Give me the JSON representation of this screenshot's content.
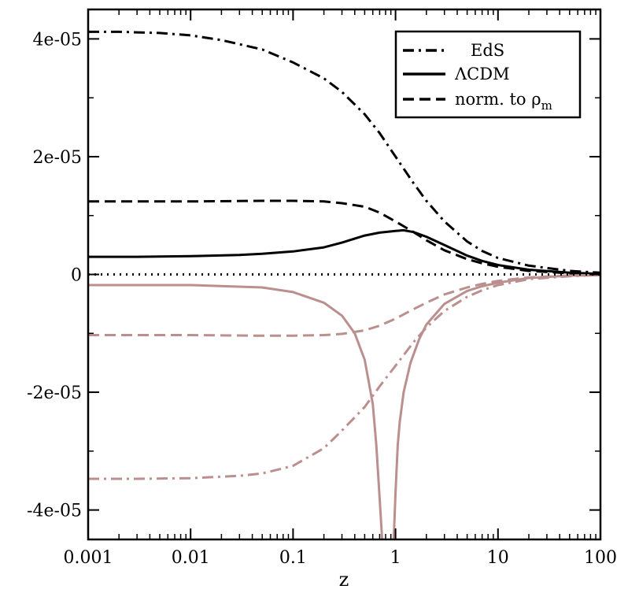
{
  "chart_data": {
    "type": "line",
    "xlabel": "z",
    "ylabel": "",
    "xscale": "log",
    "xlim": [
      0.001,
      100
    ],
    "ylim": [
      -4.5e-05,
      4.5e-05
    ],
    "grid": false,
    "legend_position": "top-right",
    "xticks": [
      {
        "value": 0.001,
        "label": "0.001"
      },
      {
        "value": 0.01,
        "label": "0.01"
      },
      {
        "value": 0.1,
        "label": "0.1"
      },
      {
        "value": 1,
        "label": "1"
      },
      {
        "value": 10,
        "label": "10"
      },
      {
        "value": 100,
        "label": "100"
      }
    ],
    "yticks": [
      {
        "value": 4e-05,
        "label": "4e-05"
      },
      {
        "value": 2e-05,
        "label": "2e-05"
      },
      {
        "value": 0,
        "label": "0"
      },
      {
        "value": -2e-05,
        "label": "-2e-05"
      },
      {
        "value": -4e-05,
        "label": "-4e-05"
      }
    ],
    "legend": [
      {
        "label": "EdS",
        "style": "dashdot"
      },
      {
        "label": "ΛCDM",
        "style": "solid"
      },
      {
        "label_main": "norm. to ρ",
        "label_sub": "m",
        "style": "dashed"
      }
    ],
    "series": [
      {
        "style": "dashdot",
        "color": "#000000",
        "x": [
          0.001,
          0.002,
          0.005,
          0.01,
          0.02,
          0.05,
          0.1,
          0.2,
          0.3,
          0.5,
          0.7,
          1,
          1.5,
          2,
          3,
          5,
          7,
          10,
          20,
          50,
          100
        ],
        "y": [
          4.12e-05,
          4.12e-05,
          4.1e-05,
          4.06e-05,
          3.98e-05,
          3.82e-05,
          3.6e-05,
          3.33e-05,
          3.1e-05,
          2.72e-05,
          2.4e-05,
          2e-05,
          1.55e-05,
          1.25e-05,
          9e-06,
          5.6e-06,
          4e-06,
          2.8e-06,
          1.5e-06,
          6e-07,
          3e-07
        ]
      },
      {
        "style": "solid",
        "color": "#000000",
        "x": [
          0.001,
          0.003,
          0.01,
          0.03,
          0.05,
          0.1,
          0.2,
          0.3,
          0.5,
          0.7,
          1,
          1.2,
          1.5,
          2,
          3,
          5,
          7,
          10,
          20,
          50,
          100
        ],
        "y": [
          3e-06,
          3e-06,
          3.1e-06,
          3.3e-06,
          3.5e-06,
          3.9e-06,
          4.6e-06,
          5.4e-06,
          6.6e-06,
          7.1e-06,
          7.4e-06,
          7.5e-06,
          7.2e-06,
          6.4e-06,
          5e-06,
          3.2e-06,
          2.3e-06,
          1.6e-06,
          8e-07,
          3e-07,
          1e-07
        ]
      },
      {
        "style": "dashed",
        "color": "#000000",
        "x": [
          0.001,
          0.01,
          0.05,
          0.1,
          0.2,
          0.3,
          0.5,
          0.7,
          1,
          1.5,
          2,
          3,
          5,
          7,
          10,
          20,
          50,
          100
        ],
        "y": [
          1.24e-05,
          1.24e-05,
          1.25e-05,
          1.25e-05,
          1.24e-05,
          1.21e-05,
          1.15e-05,
          1.05e-05,
          9e-06,
          7.2e-06,
          5.8e-06,
          4.1e-06,
          2.6e-06,
          1.9e-06,
          1.3e-06,
          6e-07,
          2e-07,
          1e-07
        ]
      },
      {
        "style": "dashdot",
        "color": "#bc8f8f",
        "x": [
          0.001,
          0.003,
          0.01,
          0.03,
          0.05,
          0.1,
          0.2,
          0.3,
          0.5,
          0.7,
          1,
          1.5,
          2,
          3,
          5,
          7,
          10,
          20,
          50,
          100
        ],
        "y": [
          -3.47e-05,
          -3.47e-05,
          -3.46e-05,
          -3.42e-05,
          -3.38e-05,
          -3.25e-05,
          -2.95e-05,
          -2.65e-05,
          -2.25e-05,
          -1.9e-05,
          -1.55e-05,
          -1.15e-05,
          -9e-06,
          -6.2e-06,
          -3.8e-06,
          -2.7e-06,
          -1.8e-06,
          -8e-07,
          -3e-07,
          -1e-07
        ]
      },
      {
        "style": "solid",
        "color": "#bc8f8f",
        "x": [
          0.001,
          0.01,
          0.05,
          0.1,
          0.2,
          0.3,
          0.4,
          0.5,
          0.6,
          0.65,
          0.7,
          0.74
        ],
        "y": [
          -1.8e-06,
          -1.8e-06,
          -2.2e-06,
          -3e-06,
          -4.8e-06,
          -7e-06,
          -1e-05,
          -1.45e-05,
          -2.2e-05,
          -2.9e-05,
          -3.8e-05,
          -4.5e-05
        ]
      },
      {
        "style": "solid",
        "color": "#bc8f8f",
        "x": [
          0.96,
          1,
          1.05,
          1.1,
          1.2,
          1.4,
          1.7,
          2,
          3,
          5,
          7,
          10,
          20,
          50,
          100
        ],
        "y": [
          -4.5e-05,
          -3.7e-05,
          -2.9e-05,
          -2.5e-05,
          -2e-05,
          -1.5e-05,
          -1.1e-05,
          -8.5e-06,
          -5e-06,
          -2.8e-06,
          -2e-06,
          -1.4e-06,
          -6e-07,
          -2e-07,
          -1e-07
        ]
      },
      {
        "style": "dashed",
        "color": "#bc8f8f",
        "x": [
          0.001,
          0.01,
          0.05,
          0.1,
          0.2,
          0.3,
          0.5,
          0.7,
          1,
          1.5,
          2,
          3,
          5,
          7,
          10,
          20,
          50,
          100
        ],
        "y": [
          -1.03e-05,
          -1.03e-05,
          -1.04e-05,
          -1.04e-05,
          -1.03e-05,
          -1.01e-05,
          -9.5e-06,
          -8.7e-06,
          -7.5e-06,
          -5.9e-06,
          -4.8e-06,
          -3.4e-06,
          -2.2e-06,
          -1.6e-06,
          -1.1e-06,
          -5e-07,
          -2e-07,
          -1e-07
        ]
      },
      {
        "style": "dotted",
        "color": "#000000",
        "x": [
          0.001,
          100
        ],
        "y": [
          0,
          0
        ]
      }
    ]
  }
}
